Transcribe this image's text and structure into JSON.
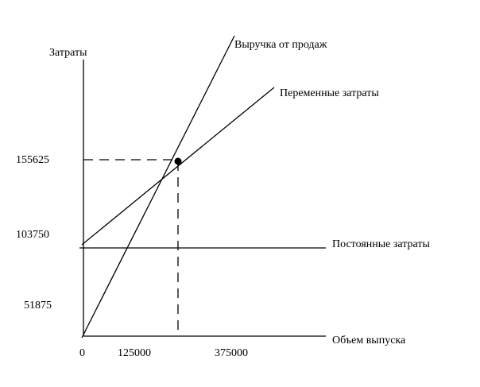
{
  "axes": {
    "y_title": "Затраты",
    "x_title": "Объем выпуска",
    "y_labels": [
      "155625",
      "103750",
      "51875"
    ],
    "x_labels": [
      "0",
      "125000",
      "375000"
    ]
  },
  "lines": {
    "revenue": "Выручка от продаж",
    "variable_costs": "Переменные затраты",
    "fixed_costs": "Постоянные затраты"
  }
}
